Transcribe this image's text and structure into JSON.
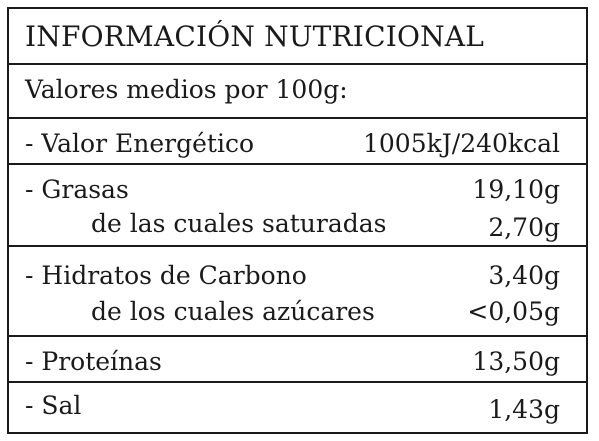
{
  "title": "INFORMACIÓN NUTRICIONAL",
  "subtitle": "Valores medios por 100g:",
  "rows": {
    "energy": {
      "name": "- Valor Energético",
      "value": "1005kJ/240kcal"
    },
    "fat": {
      "name": "- Grasas",
      "value": "19,10g"
    },
    "saturated": {
      "name": "de las cuales saturadas",
      "value": "2,70g"
    },
    "carbs": {
      "name": "- Hidratos de Carbono",
      "value": "3,40g"
    },
    "sugars": {
      "name": "de los cuales azúcares",
      "value": "<0,05g"
    },
    "protein": {
      "name": "- Proteínas",
      "value": "13,50g"
    },
    "salt": {
      "name": "- Sal",
      "value": "1,43g"
    }
  }
}
